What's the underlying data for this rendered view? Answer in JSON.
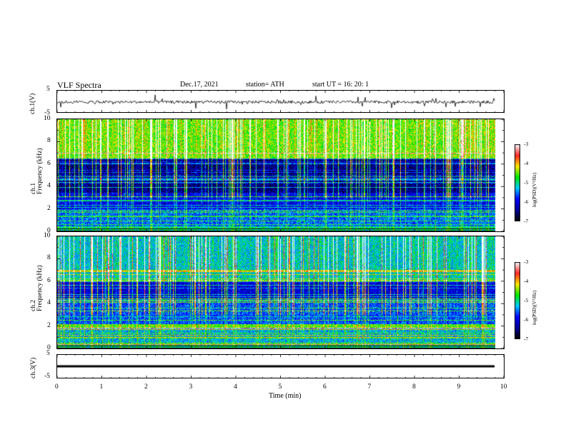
{
  "header": {
    "title": "VLF  Spectra",
    "date": "Dec.17, 2021",
    "station": "station= ATH",
    "start": "start  UT  =    16: 20: 1"
  },
  "colorbar": {
    "label": "log(PSD)(V²/Hz)",
    "ticks": [
      "-3",
      "-4",
      "-5",
      "-6",
      "-7"
    ],
    "colors": [
      "#ffffff",
      "#ff2020",
      "#ffd000",
      "#00dd00",
      "#00c8ff",
      "#0000d0",
      "#000000"
    ]
  },
  "chart_data": [
    {
      "type": "line",
      "name": "ch1-waveform",
      "ylabel": "ch.1(V)",
      "ylim": [
        -5,
        5
      ],
      "yticks": [
        "5",
        "-5"
      ],
      "xlim": [
        0,
        10
      ],
      "baseline": -0.3
    },
    {
      "type": "heatmap",
      "name": "ch1-spectrogram",
      "ylabel": "ch.1\nFrequency (kHz)",
      "ylabel_lines": [
        "ch.1",
        "Frequency  (kHz)"
      ],
      "ylim": [
        0,
        10
      ],
      "yticks": [
        "0",
        "2",
        "4",
        "6",
        "8",
        "10"
      ],
      "xlim": [
        0,
        10
      ],
      "zrange": [
        -7,
        -3
      ]
    },
    {
      "type": "heatmap",
      "name": "ch2-spectrogram",
      "ylabel_lines": [
        "ch.2",
        "Frequency  (kHz)"
      ],
      "ylim": [
        0,
        10
      ],
      "yticks": [
        "0",
        "2",
        "4",
        "6",
        "8",
        "10"
      ],
      "xlim": [
        0,
        10
      ],
      "zrange": [
        -7,
        -3
      ]
    },
    {
      "type": "line",
      "name": "ch3-waveform",
      "ylabel": "ch.3(V)",
      "ylim": [
        -5,
        5
      ],
      "yticks": [
        "5",
        "-5"
      ],
      "xlim": [
        0,
        10
      ],
      "baseline": 0
    }
  ],
  "xaxis": {
    "label": "Time  (min)",
    "ticks": [
      "0",
      "1",
      "2",
      "3",
      "4",
      "5",
      "6",
      "7",
      "8",
      "9",
      "10"
    ],
    "data_end": 9.8
  }
}
